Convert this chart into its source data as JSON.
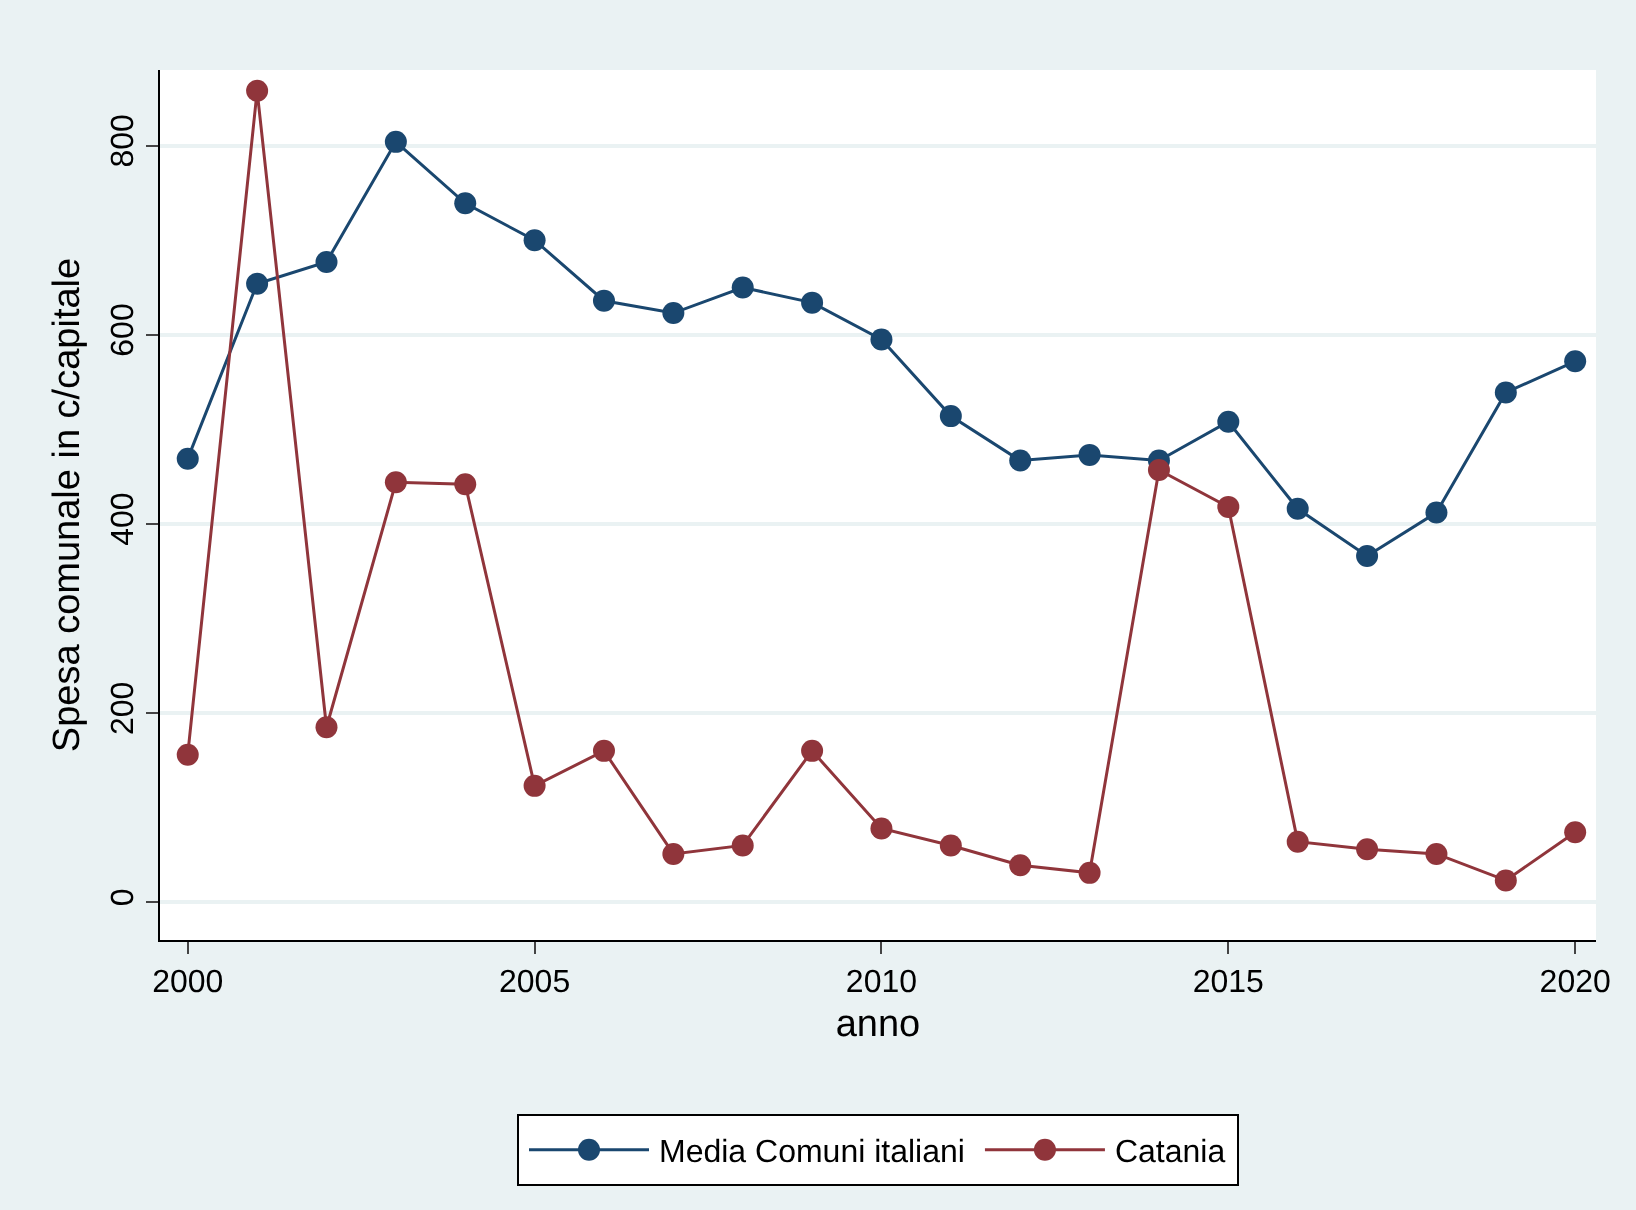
{
  "chart_data": {
    "type": "line",
    "xlabel": "anno",
    "ylabel": "Spesa comunale in c/capitale",
    "x": [
      2000,
      2001,
      2002,
      2003,
      2004,
      2005,
      2006,
      2007,
      2008,
      2009,
      2010,
      2011,
      2012,
      2013,
      2014,
      2015,
      2016,
      2017,
      2018,
      2019,
      2020
    ],
    "series": [
      {
        "name": "Media Comuni italiani",
        "color": "#1a476f",
        "values": [
          469,
          654,
          677,
          804,
          739,
          700,
          636,
          623,
          650,
          634,
          595,
          514,
          467,
          473,
          467,
          508,
          416,
          366,
          412,
          539,
          572
        ]
      },
      {
        "name": "Catania",
        "color": "#90353b",
        "values": [
          156,
          858,
          185,
          444,
          442,
          123,
          160,
          51,
          60,
          160,
          78,
          60,
          39,
          31,
          457,
          418,
          64,
          56,
          51,
          23,
          74
        ]
      }
    ],
    "xlim": [
      1999.6,
      2020.3
    ],
    "xticks": [
      2000,
      2005,
      2010,
      2015,
      2020
    ],
    "ylim": [
      -40,
      880
    ],
    "yticks": [
      0,
      200,
      400,
      600,
      800
    ],
    "grid": "y",
    "legend": "bottom",
    "marker": "circle",
    "line_style": "solid"
  }
}
